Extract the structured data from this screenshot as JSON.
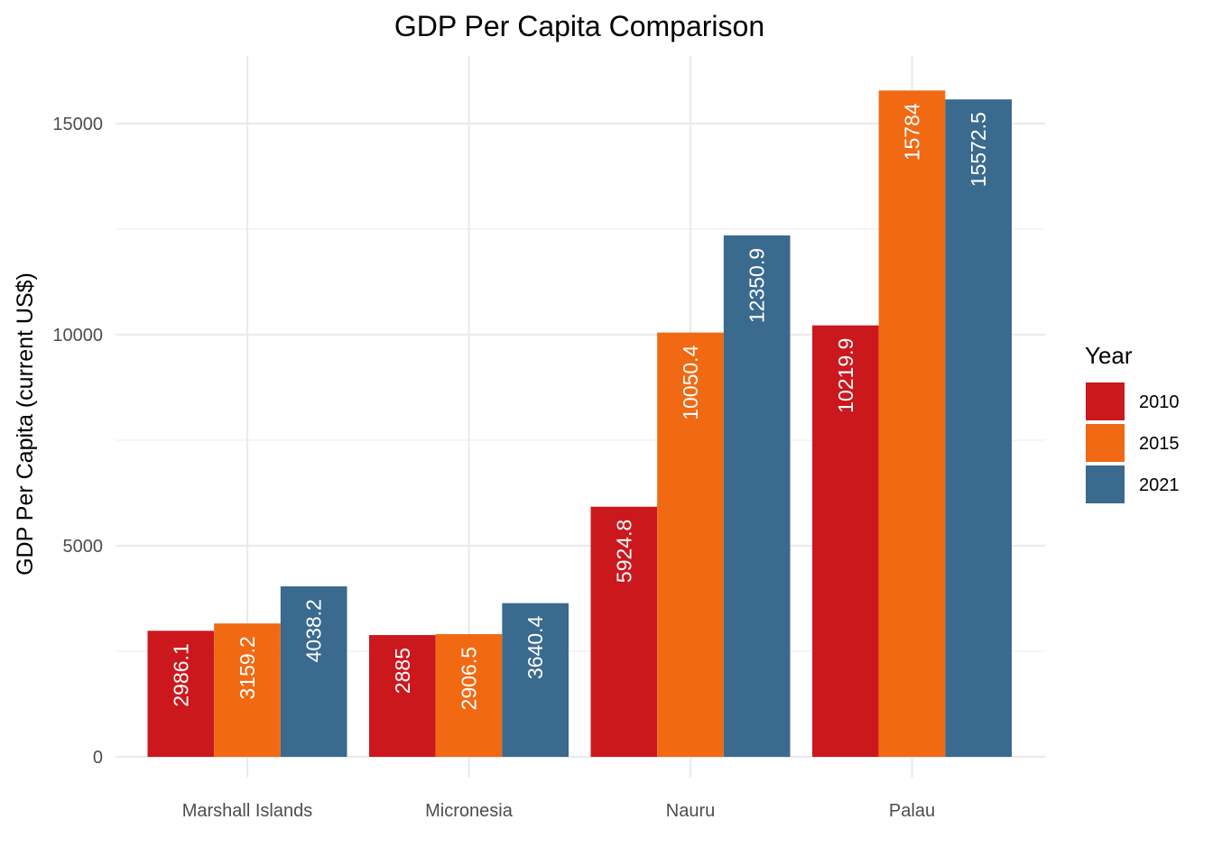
{
  "chart_data": {
    "type": "bar",
    "title": "GDP Per Capita Comparison",
    "xlabel": "",
    "ylabel": "GDP Per Capita (current US$)",
    "categories": [
      "Marshall Islands",
      "Micronesia",
      "Nauru",
      "Palau"
    ],
    "series": [
      {
        "name": "2010",
        "color": "#cb181d",
        "values": [
          2986.1,
          2885,
          5924.8,
          10219.9
        ],
        "labels": [
          "2986.1",
          "2885",
          "5924.8",
          "10219.9"
        ]
      },
      {
        "name": "2015",
        "color": "#f16913",
        "values": [
          3159.2,
          2906.5,
          10050.4,
          15784
        ],
        "labels": [
          "3159.2",
          "2906.5",
          "10050.4",
          "15784"
        ]
      },
      {
        "name": "2021",
        "color": "#3a6a8e",
        "values": [
          4038.2,
          3640.4,
          12350.9,
          15572.5
        ],
        "labels": [
          "4038.2",
          "3640.4",
          "12350.9",
          "15572.5"
        ]
      }
    ],
    "yticks": [
      0,
      5000,
      10000,
      15000
    ],
    "ytick_labels": [
      "0",
      "5000",
      "10000",
      "15000"
    ],
    "ylim": [
      0,
      15784
    ],
    "legend": {
      "title": "Year",
      "position": "right"
    },
    "grid": true
  }
}
